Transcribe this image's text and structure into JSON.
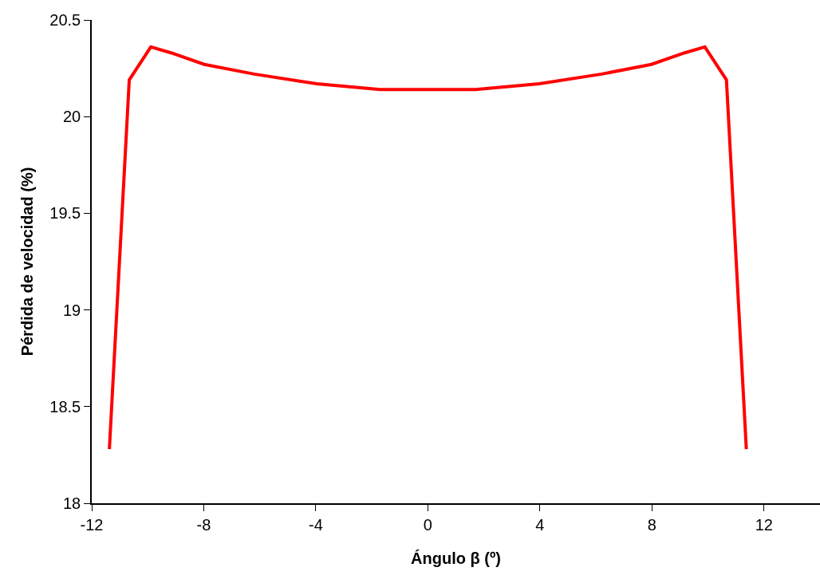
{
  "chart_data": {
    "type": "line",
    "xlabel": "Ángulo β (º)",
    "ylabel": "Pérdida de velocidad (%)",
    "x": [
      -11.37,
      -10.66,
      -9.89,
      -9.17,
      -7.98,
      -6.2,
      -3.98,
      -1.7,
      0,
      1.7,
      3.98,
      6.2,
      7.98,
      9.17,
      9.89,
      10.66,
      11.37
    ],
    "series": [
      {
        "color": "#ff0000",
        "values": [
          18.28,
          20.19,
          20.36,
          20.33,
          20.27,
          20.22,
          20.17,
          20.14,
          20.14,
          20.14,
          20.17,
          20.22,
          20.27,
          20.33,
          20.36,
          20.19,
          18.28
        ]
      }
    ],
    "xlim": [
      -12,
      14
    ],
    "xticks": [
      -12,
      -8,
      -4,
      0,
      4,
      8,
      12
    ],
    "ylim": [
      18,
      20.5
    ],
    "yticks": [
      18,
      18.5,
      19,
      19.5,
      20,
      20.5
    ],
    "grid": false,
    "marker": "none",
    "line_style": "solid"
  }
}
